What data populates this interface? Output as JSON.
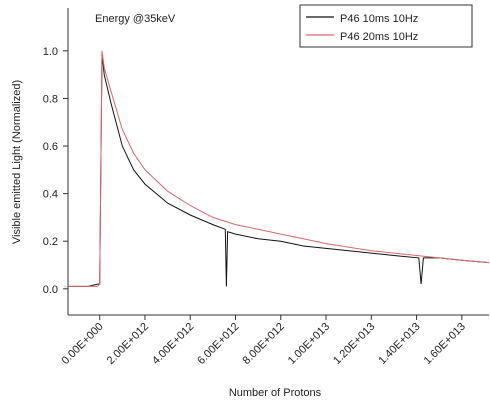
{
  "chart_data": {
    "type": "line",
    "annotation": "Energy @35keV",
    "xlabel": "Number of Protons",
    "ylabel": "Visible emitted Light (Normalized)",
    "xlim": [
      -1400000000000.0,
      17200000000000.0
    ],
    "ylim": [
      -0.11,
      1.18
    ],
    "xticks": [
      {
        "value": 0,
        "label": "0.00E+000"
      },
      {
        "value": 2000000000000.0,
        "label": "2.00E+012"
      },
      {
        "value": 4000000000000.0,
        "label": "4.00E+012"
      },
      {
        "value": 6000000000000.0,
        "label": "6.00E+012"
      },
      {
        "value": 8000000000000.0,
        "label": "8.00E+012"
      },
      {
        "value": 10000000000000.0,
        "label": "1.00E+013"
      },
      {
        "value": 12000000000000.0,
        "label": "1.20E+013"
      },
      {
        "value": 14000000000000.0,
        "label": "1.40E+013"
      },
      {
        "value": 16000000000000.0,
        "label": "1.60E+013"
      }
    ],
    "yticks": [
      {
        "value": 0,
        "label": "0.0"
      },
      0.2,
      0.4,
      0.6,
      0.8,
      {
        "value": 1,
        "label": "1.0"
      }
    ],
    "legend": "upper right",
    "series": [
      {
        "name": "P46 10ms 10Hz",
        "color": "#111111",
        "x": [
          -1400000000000.0,
          -1000000000000.0,
          -500000000000.0,
          -100000000000.0,
          0,
          100000000000.0,
          200000000000.0,
          500000000000.0,
          1000000000000.0,
          1500000000000.0,
          2000000000000.0,
          3000000000000.0,
          4000000000000.0,
          5000000000000.0,
          5550000000000.0,
          5600000000000.0,
          5650000000000.0,
          6000000000000.0,
          7000000000000.0,
          8000000000000.0,
          9000000000000.0,
          10000000000000.0,
          11000000000000.0,
          12000000000000.0,
          13000000000000.0,
          14100000000000.0,
          14200000000000.0,
          14300000000000.0,
          15000000000000.0,
          16000000000000.0,
          17200000000000.0
        ],
        "values": [
          0.01,
          0.01,
          0.01,
          0.02,
          0.02,
          0.99,
          0.9,
          0.78,
          0.6,
          0.5,
          0.44,
          0.36,
          0.31,
          0.27,
          0.25,
          0.01,
          0.24,
          0.23,
          0.21,
          0.2,
          0.18,
          0.17,
          0.16,
          0.15,
          0.14,
          0.13,
          0.02,
          0.13,
          0.13,
          0.12,
          0.11
        ]
      },
      {
        "name": "P46 20ms 10Hz",
        "color": "#d9686a",
        "x": [
          -1400000000000.0,
          -500000000000.0,
          -100000000000.0,
          0,
          100000000000.0,
          200000000000.0,
          500000000000.0,
          1000000000000.0,
          1500000000000.0,
          2000000000000.0,
          3000000000000.0,
          4000000000000.0,
          5000000000000.0,
          6000000000000.0,
          7000000000000.0,
          8000000000000.0,
          9000000000000.0,
          10000000000000.0,
          12000000000000.0,
          14000000000000.0,
          16000000000000.0,
          17200000000000.0
        ],
        "values": [
          0.01,
          0.01,
          0.01,
          0.02,
          1.0,
          0.93,
          0.83,
          0.67,
          0.57,
          0.5,
          0.41,
          0.35,
          0.3,
          0.27,
          0.25,
          0.23,
          0.21,
          0.19,
          0.16,
          0.14,
          0.12,
          0.11
        ]
      }
    ]
  }
}
